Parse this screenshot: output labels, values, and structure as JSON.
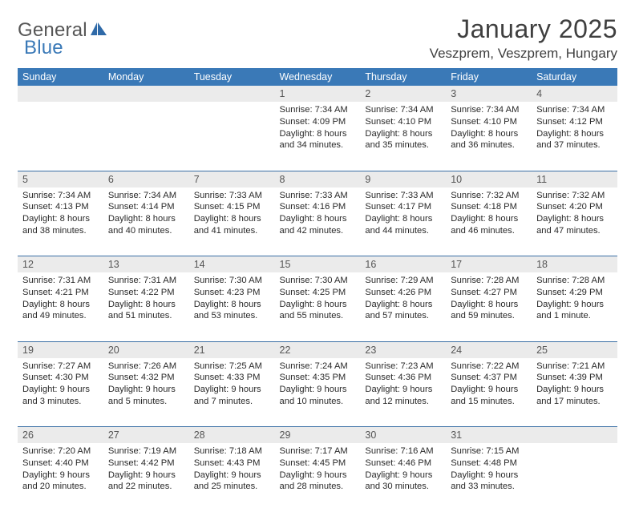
{
  "brand": {
    "part1": "General",
    "part2": "Blue"
  },
  "title": "January 2025",
  "location": "Veszprem, Veszprem, Hungary",
  "colors": {
    "header_bg": "#3a79b7",
    "header_fg": "#ffffff",
    "daynum_bg": "#ebebeb",
    "row_divider": "#3a6fa5",
    "text": "#2a2a2a",
    "title": "#3f3f3f"
  },
  "day_headers": [
    "Sunday",
    "Monday",
    "Tuesday",
    "Wednesday",
    "Thursday",
    "Friday",
    "Saturday"
  ],
  "weeks": [
    [
      {
        "n": "",
        "sunrise": "",
        "sunset": "",
        "daylight": ""
      },
      {
        "n": "",
        "sunrise": "",
        "sunset": "",
        "daylight": ""
      },
      {
        "n": "",
        "sunrise": "",
        "sunset": "",
        "daylight": ""
      },
      {
        "n": "1",
        "sunrise": "Sunrise: 7:34 AM",
        "sunset": "Sunset: 4:09 PM",
        "daylight": "Daylight: 8 hours and 34 minutes."
      },
      {
        "n": "2",
        "sunrise": "Sunrise: 7:34 AM",
        "sunset": "Sunset: 4:10 PM",
        "daylight": "Daylight: 8 hours and 35 minutes."
      },
      {
        "n": "3",
        "sunrise": "Sunrise: 7:34 AM",
        "sunset": "Sunset: 4:10 PM",
        "daylight": "Daylight: 8 hours and 36 minutes."
      },
      {
        "n": "4",
        "sunrise": "Sunrise: 7:34 AM",
        "sunset": "Sunset: 4:12 PM",
        "daylight": "Daylight: 8 hours and 37 minutes."
      }
    ],
    [
      {
        "n": "5",
        "sunrise": "Sunrise: 7:34 AM",
        "sunset": "Sunset: 4:13 PM",
        "daylight": "Daylight: 8 hours and 38 minutes."
      },
      {
        "n": "6",
        "sunrise": "Sunrise: 7:34 AM",
        "sunset": "Sunset: 4:14 PM",
        "daylight": "Daylight: 8 hours and 40 minutes."
      },
      {
        "n": "7",
        "sunrise": "Sunrise: 7:33 AM",
        "sunset": "Sunset: 4:15 PM",
        "daylight": "Daylight: 8 hours and 41 minutes."
      },
      {
        "n": "8",
        "sunrise": "Sunrise: 7:33 AM",
        "sunset": "Sunset: 4:16 PM",
        "daylight": "Daylight: 8 hours and 42 minutes."
      },
      {
        "n": "9",
        "sunrise": "Sunrise: 7:33 AM",
        "sunset": "Sunset: 4:17 PM",
        "daylight": "Daylight: 8 hours and 44 minutes."
      },
      {
        "n": "10",
        "sunrise": "Sunrise: 7:32 AM",
        "sunset": "Sunset: 4:18 PM",
        "daylight": "Daylight: 8 hours and 46 minutes."
      },
      {
        "n": "11",
        "sunrise": "Sunrise: 7:32 AM",
        "sunset": "Sunset: 4:20 PM",
        "daylight": "Daylight: 8 hours and 47 minutes."
      }
    ],
    [
      {
        "n": "12",
        "sunrise": "Sunrise: 7:31 AM",
        "sunset": "Sunset: 4:21 PM",
        "daylight": "Daylight: 8 hours and 49 minutes."
      },
      {
        "n": "13",
        "sunrise": "Sunrise: 7:31 AM",
        "sunset": "Sunset: 4:22 PM",
        "daylight": "Daylight: 8 hours and 51 minutes."
      },
      {
        "n": "14",
        "sunrise": "Sunrise: 7:30 AM",
        "sunset": "Sunset: 4:23 PM",
        "daylight": "Daylight: 8 hours and 53 minutes."
      },
      {
        "n": "15",
        "sunrise": "Sunrise: 7:30 AM",
        "sunset": "Sunset: 4:25 PM",
        "daylight": "Daylight: 8 hours and 55 minutes."
      },
      {
        "n": "16",
        "sunrise": "Sunrise: 7:29 AM",
        "sunset": "Sunset: 4:26 PM",
        "daylight": "Daylight: 8 hours and 57 minutes."
      },
      {
        "n": "17",
        "sunrise": "Sunrise: 7:28 AM",
        "sunset": "Sunset: 4:27 PM",
        "daylight": "Daylight: 8 hours and 59 minutes."
      },
      {
        "n": "18",
        "sunrise": "Sunrise: 7:28 AM",
        "sunset": "Sunset: 4:29 PM",
        "daylight": "Daylight: 9 hours and 1 minute."
      }
    ],
    [
      {
        "n": "19",
        "sunrise": "Sunrise: 7:27 AM",
        "sunset": "Sunset: 4:30 PM",
        "daylight": "Daylight: 9 hours and 3 minutes."
      },
      {
        "n": "20",
        "sunrise": "Sunrise: 7:26 AM",
        "sunset": "Sunset: 4:32 PM",
        "daylight": "Daylight: 9 hours and 5 minutes."
      },
      {
        "n": "21",
        "sunrise": "Sunrise: 7:25 AM",
        "sunset": "Sunset: 4:33 PM",
        "daylight": "Daylight: 9 hours and 7 minutes."
      },
      {
        "n": "22",
        "sunrise": "Sunrise: 7:24 AM",
        "sunset": "Sunset: 4:35 PM",
        "daylight": "Daylight: 9 hours and 10 minutes."
      },
      {
        "n": "23",
        "sunrise": "Sunrise: 7:23 AM",
        "sunset": "Sunset: 4:36 PM",
        "daylight": "Daylight: 9 hours and 12 minutes."
      },
      {
        "n": "24",
        "sunrise": "Sunrise: 7:22 AM",
        "sunset": "Sunset: 4:37 PM",
        "daylight": "Daylight: 9 hours and 15 minutes."
      },
      {
        "n": "25",
        "sunrise": "Sunrise: 7:21 AM",
        "sunset": "Sunset: 4:39 PM",
        "daylight": "Daylight: 9 hours and 17 minutes."
      }
    ],
    [
      {
        "n": "26",
        "sunrise": "Sunrise: 7:20 AM",
        "sunset": "Sunset: 4:40 PM",
        "daylight": "Daylight: 9 hours and 20 minutes."
      },
      {
        "n": "27",
        "sunrise": "Sunrise: 7:19 AM",
        "sunset": "Sunset: 4:42 PM",
        "daylight": "Daylight: 9 hours and 22 minutes."
      },
      {
        "n": "28",
        "sunrise": "Sunrise: 7:18 AM",
        "sunset": "Sunset: 4:43 PM",
        "daylight": "Daylight: 9 hours and 25 minutes."
      },
      {
        "n": "29",
        "sunrise": "Sunrise: 7:17 AM",
        "sunset": "Sunset: 4:45 PM",
        "daylight": "Daylight: 9 hours and 28 minutes."
      },
      {
        "n": "30",
        "sunrise": "Sunrise: 7:16 AM",
        "sunset": "Sunset: 4:46 PM",
        "daylight": "Daylight: 9 hours and 30 minutes."
      },
      {
        "n": "31",
        "sunrise": "Sunrise: 7:15 AM",
        "sunset": "Sunset: 4:48 PM",
        "daylight": "Daylight: 9 hours and 33 minutes."
      },
      {
        "n": "",
        "sunrise": "",
        "sunset": "",
        "daylight": ""
      }
    ]
  ]
}
